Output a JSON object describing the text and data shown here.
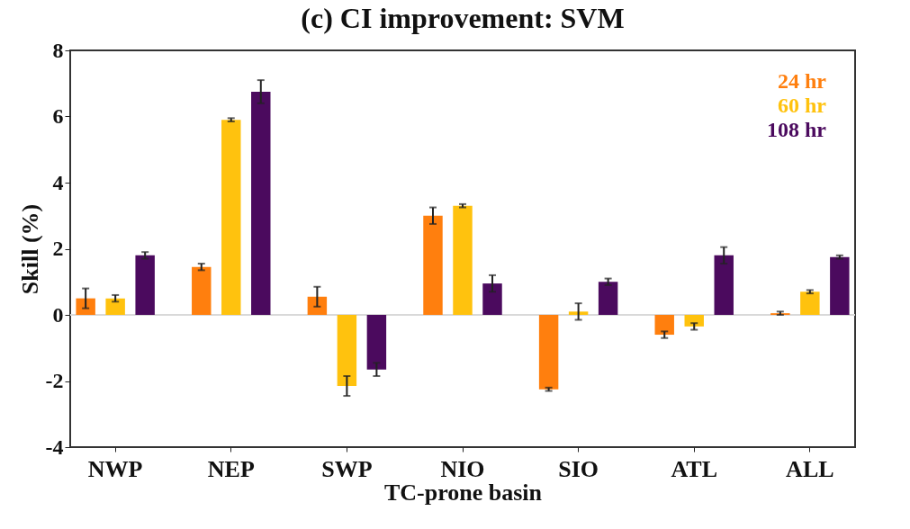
{
  "chart_data": {
    "type": "bar",
    "title": "(c) CI improvement: SVM",
    "xlabel": "TC-prone basin",
    "ylabel": "Skill (%)",
    "categories": [
      "NWP",
      "NEP",
      "SWP",
      "NIO",
      "SIO",
      "ATL",
      "ALL"
    ],
    "series": [
      {
        "name": "24 hr",
        "color": "#ff7f0e",
        "values": [
          0.5,
          1.45,
          0.55,
          3.0,
          -2.25,
          -0.6,
          0.05
        ],
        "errors": [
          0.3,
          0.1,
          0.3,
          0.25,
          0.05,
          0.1,
          0.05
        ]
      },
      {
        "name": "60 hr",
        "color": "#ffc20e",
        "values": [
          0.5,
          5.9,
          -2.15,
          3.3,
          0.1,
          -0.35,
          0.7
        ],
        "errors": [
          0.1,
          0.05,
          0.3,
          0.05,
          0.25,
          0.1,
          0.05
        ]
      },
      {
        "name": "108 hr",
        "color": "#4b0a5e",
        "values": [
          1.8,
          6.75,
          -1.65,
          0.95,
          1.0,
          1.8,
          1.75
        ],
        "errors": [
          0.1,
          0.35,
          0.2,
          0.25,
          0.1,
          0.25,
          0.05
        ]
      }
    ],
    "ylim": [
      -4,
      8
    ],
    "yticks": [
      -4,
      -2,
      0,
      2,
      4,
      6,
      8
    ],
    "ref_lines": [
      {
        "axis": "y",
        "value": 0,
        "color": "#d9d9d9"
      }
    ],
    "legend": "top right",
    "grid": false
  }
}
